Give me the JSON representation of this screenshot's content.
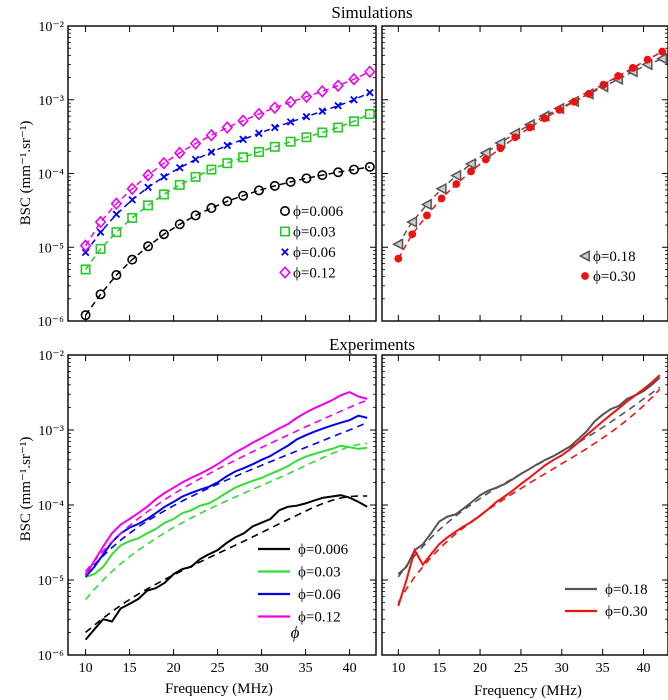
{
  "figure": {
    "row_titles": [
      "Simulations",
      "Experiments"
    ],
    "ylabel": "BSC (mm⁻¹.sr⁻¹)",
    "xlabel": "Frequency (MHz)",
    "stray_annotation": "ϕ"
  },
  "chart_data": [
    {
      "id": "sim-left",
      "type": "scatter",
      "row_title": "Simulations",
      "ylabel": "BSC (mm⁻¹.sr⁻¹)",
      "xlabel": "",
      "yscale": "log",
      "ylim": [
        1e-06,
        0.01
      ],
      "xlim": [
        8,
        43
      ],
      "yticks": [
        -6,
        -5,
        -4,
        -3,
        -2
      ],
      "xticks": [
        10,
        15,
        20,
        25,
        30,
        35,
        40
      ],
      "xtick_labels_shown": false,
      "grid": false,
      "legend": "bottom-right",
      "x": [
        10,
        11.7,
        13.5,
        15.3,
        17.1,
        18.9,
        20.7,
        22.5,
        24.3,
        26.1,
        27.9,
        29.7,
        31.5,
        33.3,
        35.1,
        36.9,
        38.7,
        40.5,
        42.3
      ],
      "series": [
        {
          "name": "ϕ=0.006",
          "marker": "circle",
          "color": "#000000",
          "values": [
            1.2e-06,
            2.3e-06,
            4.2e-06,
            6.8e-06,
            1.03e-05,
            1.5e-05,
            2.05e-05,
            2.7e-05,
            3.4e-05,
            4.2e-05,
            5e-05,
            5.9e-05,
            6.8e-05,
            7.7e-05,
            8.6e-05,
            9.5e-05,
            0.000104,
            0.000113,
            0.000123
          ]
        },
        {
          "name": "ϕ=0.03",
          "marker": "square",
          "color": "#22cc22",
          "values": [
            5e-06,
            9.5e-06,
            1.6e-05,
            2.5e-05,
            3.7e-05,
            5.2e-05,
            7e-05,
            9e-05,
            0.000113,
            0.000138,
            0.000166,
            0.000196,
            0.00023,
            0.00027,
            0.00031,
            0.00036,
            0.00042,
            0.00051,
            0.00064
          ]
        },
        {
          "name": "ϕ=0.06",
          "marker": "x",
          "color": "#0000ee",
          "values": [
            8.5e-06,
            1.6e-05,
            2.8e-05,
            4.4e-05,
            6.5e-05,
            9e-05,
            0.00012,
            0.000155,
            0.000195,
            0.00024,
            0.00029,
            0.00035,
            0.00042,
            0.0005,
            0.00059,
            0.0007,
            0.00083,
            0.001,
            0.00125
          ]
        },
        {
          "name": "ϕ=0.12",
          "marker": "diamond",
          "color": "#ee00ee",
          "values": [
            1.05e-05,
            2.2e-05,
            3.9e-05,
            6.2e-05,
            9.5e-05,
            0.000138,
            0.00019,
            0.000255,
            0.00033,
            0.00042,
            0.00052,
            0.00064,
            0.00078,
            0.00093,
            0.0011,
            0.0013,
            0.00155,
            0.0019,
            0.0024
          ]
        }
      ]
    },
    {
      "id": "sim-right",
      "type": "scatter",
      "row_title": "Simulations",
      "ylabel": "",
      "xlabel": "",
      "yscale": "log",
      "ylim": [
        1e-06,
        0.01
      ],
      "xlim": [
        8,
        43
      ],
      "yticks": [
        -6,
        -5,
        -4,
        -3,
        -2
      ],
      "ytick_labels_shown": false,
      "xticks": [
        10,
        15,
        20,
        25,
        30,
        35,
        40
      ],
      "xtick_labels_shown": false,
      "grid": false,
      "legend": "bottom-right",
      "x": [
        10,
        11.7,
        13.5,
        15.3,
        17.1,
        18.9,
        20.7,
        22.5,
        24.3,
        26.1,
        27.9,
        29.7,
        31.5,
        33.3,
        35.1,
        36.9,
        38.7,
        40.5,
        42.3
      ],
      "series": [
        {
          "name": "ϕ=0.18",
          "marker": "triangle-left",
          "color": "#555555",
          "values": [
            1.1e-05,
            2.2e-05,
            3.8e-05,
            6.2e-05,
            9.4e-05,
            0.000135,
            0.00019,
            0.00026,
            0.00035,
            0.00046,
            0.0006,
            0.00076,
            0.00095,
            0.0012,
            0.0015,
            0.0019,
            0.0024,
            0.003,
            0.0036
          ]
        },
        {
          "name": "ϕ=0.30",
          "marker": "dot",
          "color": "#ee1111",
          "values": [
            7e-06,
            1.5e-05,
            2.7e-05,
            4.6e-05,
            7.2e-05,
            0.000107,
            0.000155,
            0.00022,
            0.00031,
            0.00042,
            0.00056,
            0.00073,
            0.00094,
            0.0012,
            0.0016,
            0.0021,
            0.0027,
            0.0035,
            0.0045
          ]
        }
      ]
    },
    {
      "id": "exp-left",
      "type": "line",
      "row_title": "Experiments",
      "ylabel": "BSC (mm⁻¹.sr⁻¹)",
      "xlabel": "Frequency (MHz)",
      "yscale": "log",
      "ylim": [
        1e-06,
        0.01
      ],
      "xlim": [
        8,
        43
      ],
      "yticks": [
        -6,
        -5,
        -4,
        -3,
        -2
      ],
      "xticks": [
        10,
        15,
        20,
        25,
        30,
        35,
        40
      ],
      "grid": false,
      "legend": "bottom-right",
      "x": [
        10,
        11,
        12,
        13,
        14,
        15,
        16,
        17,
        18,
        19,
        20,
        21,
        22,
        23,
        24,
        25,
        26,
        27,
        28,
        29,
        30,
        31,
        32,
        33,
        34,
        35,
        36,
        37,
        38,
        39,
        40,
        41,
        42
      ],
      "series": [
        {
          "name": "ϕ=0.006",
          "color": "#000000",
          "values": [
            1.6e-06,
            2.2e-06,
            3e-06,
            2.8e-06,
            4.2e-06,
            4.8e-06,
            5.6e-06,
            7.2e-06,
            7.8e-06,
            9.2e-06,
            1.2e-05,
            1.4e-05,
            1.5e-05,
            1.9e-05,
            2.2e-05,
            2.5e-05,
            3.1e-05,
            3.7e-05,
            4.2e-05,
            5.2e-05,
            5.8e-05,
            6.5e-05,
            8.5e-05,
            9.5e-05,
            9.8e-05,
            0.000105,
            0.000115,
            0.000125,
            0.00013,
            0.000135,
            0.000125,
            0.00011,
            9.5e-05
          ]
        },
        {
          "name": "",
          "dashed": true,
          "color": "#000000",
          "values": [
            2e-06,
            2.5e-06,
            3.1e-06,
            3.8e-06,
            4.6e-06,
            5.5e-06,
            6.5e-06,
            7.6e-06,
            8.8e-06,
            1.02e-05,
            1.17e-05,
            1.34e-05,
            1.53e-05,
            1.74e-05,
            1.98e-05,
            2.25e-05,
            2.55e-05,
            2.9e-05,
            3.3e-05,
            3.75e-05,
            4.3e-05,
            4.9e-05,
            5.6e-05,
            6.4e-05,
            7.3e-05,
            8.3e-05,
            9.4e-05,
            0.000105,
            0.000115,
            0.000124,
            0.00013,
            0.000132,
            0.000132
          ]
        },
        {
          "name": "ϕ=0.03",
          "color": "#33dd33",
          "values": [
            1.1e-05,
            1.2e-05,
            1.5e-05,
            2.2e-05,
            2.9e-05,
            3.3e-05,
            3.6e-05,
            4.2e-05,
            4.8e-05,
            5.8e-05,
            6.5e-05,
            7.8e-05,
            8.5e-05,
            9.8e-05,
            0.000105,
            0.000122,
            0.000145,
            0.00017,
            0.00019,
            0.00021,
            0.00023,
            0.00026,
            0.00029,
            0.00033,
            0.00039,
            0.00044,
            0.00048,
            0.00052,
            0.00056,
            0.00062,
            0.00059,
            0.00056,
            0.00058
          ]
        },
        {
          "name": "",
          "dashed": true,
          "color": "#33dd33",
          "values": [
            5.5e-06,
            7.5e-06,
            1e-05,
            1.3e-05,
            1.65e-05,
            2.05e-05,
            2.5e-05,
            3e-05,
            3.6e-05,
            4.25e-05,
            5e-05,
            5.8e-05,
            6.7e-05,
            7.7e-05,
            8.8e-05,
            0.0001,
            0.000113,
            0.000128,
            0.000144,
            0.000162,
            0.000182,
            0.000205,
            0.00023,
            0.00026,
            0.000295,
            0.000335,
            0.00038,
            0.00043,
            0.000485,
            0.000545,
            0.0006,
            0.00064,
            0.00066
          ]
        },
        {
          "name": "ϕ=0.06",
          "color": "#0000ee",
          "values": [
            1.1e-05,
            1.5e-05,
            2.2e-05,
            3.2e-05,
            4.2e-05,
            5e-05,
            5.6e-05,
            6.5e-05,
            7.8e-05,
            9.5e-05,
            0.00011,
            0.00013,
            0.000145,
            0.00016,
            0.000175,
            0.0002,
            0.00024,
            0.00028,
            0.00031,
            0.00035,
            0.0004,
            0.00045,
            0.00053,
            0.00062,
            0.00075,
            0.00085,
            0.00095,
            0.00105,
            0.00115,
            0.00125,
            0.00135,
            0.00155,
            0.00145
          ]
        },
        {
          "name": "",
          "dashed": true,
          "color": "#0000ee",
          "values": [
            1.2e-05,
            1.6e-05,
            2.1e-05,
            2.7e-05,
            3.4e-05,
            4.2e-05,
            5.1e-05,
            6.1e-05,
            7.2e-05,
            8.4e-05,
            9.8e-05,
            0.000113,
            0.00013,
            0.000148,
            0.000168,
            0.00019,
            0.000214,
            0.00024,
            0.00027,
            0.000302,
            0.000338,
            0.000378,
            0.000422,
            0.00047,
            0.000525,
            0.000585,
            0.00065,
            0.000725,
            0.00081,
            0.0009,
            0.001,
            0.00112,
            0.00125
          ]
        },
        {
          "name": "ϕ=0.12",
          "color": "#ee00ee",
          "values": [
            1.15e-05,
            1.8e-05,
            2.8e-05,
            4.2e-05,
            5.5e-05,
            6.5e-05,
            7.8e-05,
            9.5e-05,
            0.00012,
            0.000145,
            0.00017,
            0.0002,
            0.00023,
            0.00026,
            0.0003,
            0.00035,
            0.00042,
            0.0005,
            0.00058,
            0.00068,
            0.00078,
            0.0009,
            0.00105,
            0.0012,
            0.00145,
            0.0017,
            0.00195,
            0.0022,
            0.0025,
            0.0029,
            0.0032,
            0.0028,
            0.0026
          ]
        },
        {
          "name": "",
          "dashed": true,
          "color": "#ee00ee",
          "values": [
            1.3e-05,
            1.8e-05,
            2.45e-05,
            3.25e-05,
            4.2e-05,
            5.3e-05,
            6.6e-05,
            8.1e-05,
            9.8e-05,
            0.000118,
            0.00014,
            0.000165,
            0.000193,
            0.000224,
            0.00026,
            0.0003,
            0.000345,
            0.000395,
            0.00045,
            0.000515,
            0.000585,
            0.000665,
            0.000755,
            0.000855,
            0.00097,
            0.0011,
            0.00124,
            0.0014,
            0.00158,
            0.00178,
            0.002,
            0.00225,
            0.0025
          ]
        }
      ]
    },
    {
      "id": "exp-right",
      "type": "line",
      "row_title": "Experiments",
      "ylabel": "",
      "xlabel": "Frequency (MHz)",
      "yscale": "log",
      "ylim": [
        1e-06,
        0.01
      ],
      "xlim": [
        8,
        43
      ],
      "yticks": [
        -6,
        -5,
        -4,
        -3,
        -2
      ],
      "ytick_labels_shown": false,
      "xticks": [
        10,
        15,
        20,
        25,
        30,
        35,
        40
      ],
      "grid": false,
      "legend": "bottom-right",
      "x": [
        10,
        11,
        12,
        13,
        14,
        15,
        16,
        17,
        18,
        19,
        20,
        21,
        22,
        23,
        24,
        25,
        26,
        27,
        28,
        29,
        30,
        31,
        32,
        33,
        34,
        35,
        36,
        37,
        38,
        39,
        40,
        41,
        42
      ],
      "series": [
        {
          "name": "ϕ=0.18",
          "color": "#555555",
          "values": [
            1.2e-05,
            1.5e-05,
            2.5e-05,
            3e-05,
            4.2e-05,
            6e-05,
            7e-05,
            7.5e-05,
            9e-05,
            0.00011,
            0.000135,
            0.000155,
            0.00017,
            0.00019,
            0.00022,
            0.00026,
            0.0003,
            0.00035,
            0.0004,
            0.00045,
            0.00052,
            0.0006,
            0.00075,
            0.00095,
            0.0013,
            0.0016,
            0.0019,
            0.0021,
            0.0026,
            0.0029,
            0.0033,
            0.004,
            0.005
          ]
        },
        {
          "name": "",
          "dashed": true,
          "color": "#555555",
          "values": [
            1.1e-05,
            1.55e-05,
            2.1e-05,
            2.8e-05,
            3.65e-05,
            4.65e-05,
            5.8e-05,
            7.1e-05,
            8.6e-05,
            0.000103,
            0.000122,
            0.000144,
            0.000168,
            0.000195,
            0.000225,
            0.00026,
            0.0003,
            0.000345,
            0.000395,
            0.00045,
            0.000515,
            0.00059,
            0.00068,
            0.00079,
            0.00092,
            0.00108,
            0.00128,
            0.00152,
            0.0018,
            0.00215,
            0.0026,
            0.0031,
            0.0037
          ]
        },
        {
          "name": "ϕ=0.30",
          "color": "#ee1111",
          "values": [
            4.5e-06,
            1e-05,
            2.5e-05,
            1.6e-05,
            2.2e-05,
            3e-05,
            3.7e-05,
            4.4e-05,
            5.2e-05,
            6e-05,
            7.2e-05,
            8.8e-05,
            0.00011,
            0.00013,
            0.000155,
            0.00019,
            0.00023,
            0.00028,
            0.00034,
            0.0004,
            0.00046,
            0.00055,
            0.00068,
            0.00085,
            0.00105,
            0.0013,
            0.0016,
            0.00195,
            0.0024,
            0.0029,
            0.0035,
            0.0043,
            0.0054
          ]
        },
        {
          "name": "",
          "dashed": true,
          "color": "#ee1111",
          "values": [
            5e-06,
            7.6e-06,
            1.1e-05,
            1.5e-05,
            2e-05,
            2.6e-05,
            3.3e-05,
            4.1e-05,
            5e-05,
            6.1e-05,
            7.3e-05,
            8.7e-05,
            0.000103,
            0.000121,
            0.000142,
            0.000166,
            0.000194,
            0.000226,
            0.000263,
            0.000305,
            0.000355,
            0.000412,
            0.00048,
            0.00056,
            0.00066,
            0.00078,
            0.00093,
            0.00112,
            0.00136,
            0.00168,
            0.0021,
            0.0027,
            0.0035
          ]
        }
      ]
    }
  ]
}
